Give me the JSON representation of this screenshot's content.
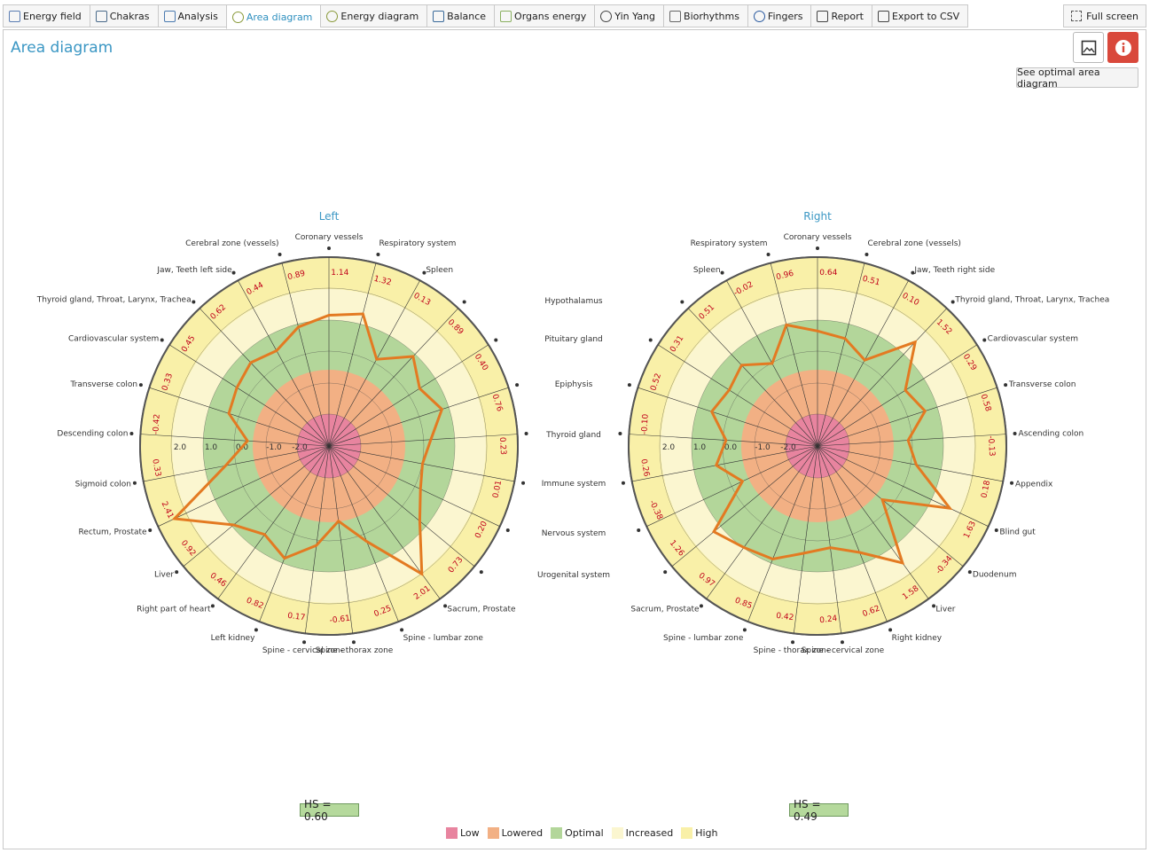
{
  "tabs": [
    {
      "label": "Energy field",
      "icon": "energy-field-icon",
      "active": false
    },
    {
      "label": "Chakras",
      "icon": "chakras-icon",
      "active": false
    },
    {
      "label": "Analysis",
      "icon": "analysis-icon",
      "active": false
    },
    {
      "label": "Area diagram",
      "icon": "area-diagram-icon",
      "active": true
    },
    {
      "label": "Energy diagram",
      "icon": "energy-diagram-icon",
      "active": false
    },
    {
      "label": "Balance",
      "icon": "balance-icon",
      "active": false
    },
    {
      "label": "Organs energy",
      "icon": "organs-energy-icon",
      "active": false
    },
    {
      "label": "Yin Yang",
      "icon": "yin-yang-icon",
      "active": false
    },
    {
      "label": "Biorhythms",
      "icon": "biorhythms-icon",
      "active": false
    },
    {
      "label": "Fingers",
      "icon": "fingers-icon",
      "active": false
    },
    {
      "label": "Report",
      "icon": "printer-icon",
      "active": false
    },
    {
      "label": "Export to CSV",
      "icon": "export-icon",
      "active": false
    }
  ],
  "fullscreen_label": "Full screen",
  "page_title": "Area diagram",
  "optimal_button_label": "See optimal area diagram",
  "middle_labels": [
    "Hypothalamus",
    "Pituitary gland",
    "Epiphysis",
    "Thyroid gland",
    "Immune system",
    "Nervous system",
    "Urogenital system"
  ],
  "legend": [
    {
      "label": "Low",
      "color": "#e8849f"
    },
    {
      "label": "Lowered",
      "color": "#f2b084"
    },
    {
      "label": "Optimal",
      "color": "#b3d69a"
    },
    {
      "label": "Increased",
      "color": "#fbf6d0"
    },
    {
      "label": "High",
      "color": "#f9f0a8"
    }
  ],
  "line_color": "#e37a22",
  "value_color": "#c0001a",
  "chart_data": [
    {
      "type": "radar",
      "title": "Left",
      "hs_label": "HS = 0.60",
      "ring_scale": [
        "2.0",
        "1.0",
        "0.0",
        "-1.0",
        "-2.0"
      ],
      "axes": [
        "Coronary vessels",
        "Respiratory system",
        "Spleen",
        "",
        "",
        "",
        "",
        "",
        "",
        "",
        "Sacrum, Prostate",
        "Spine - lumbar zone",
        "Spine - thorax zone",
        "Spine - cervical zone",
        "Left kidney",
        "Right part of heart",
        "Liver",
        "Rectum, Prostate",
        "Sigmoid colon",
        "Descending colon",
        "Transverse colon",
        "Cardiovascular system",
        "Thyroid gland, Throat, Larynx, Trachea",
        "Jaw, Teeth left side",
        "Cerebral zone (vessels)"
      ],
      "values": [
        1.14,
        1.32,
        0.13,
        0.89,
        0.4,
        0.76,
        0.23,
        0.01,
        0.2,
        0.73,
        2.01,
        0.25,
        -0.61,
        0.17,
        0.82,
        0.46,
        0.92,
        2.41,
        0.33,
        -0.42,
        0.33,
        0.45,
        0.62,
        0.44,
        0.89
      ],
      "value_labels": [
        "1.14",
        "1.32",
        "0.13",
        "0.89",
        "0.40",
        "0.76",
        "0.23",
        "0.01",
        "0.20",
        "0.73",
        "2.01",
        "0.25",
        "-0.61",
        "0.17",
        "0.82",
        "0.46",
        "0.92",
        "2.41",
        "0.33",
        "-0.42",
        "0.33",
        "0.45",
        "0.62",
        "0.44",
        "0.89"
      ],
      "rlim": [
        -3,
        3
      ]
    },
    {
      "type": "radar",
      "title": "Right",
      "hs_label": "HS = 0.49",
      "ring_scale": [
        "2.0",
        "1.0",
        "0.0",
        "-1.0",
        "-2.0"
      ],
      "axes": [
        "Coronary vessels",
        "Cerebral zone (vessels)",
        "Jaw, Teeth right side",
        "Thyroid gland, Throat, Larynx, Trachea",
        "Cardiovascular system",
        "Transverse colon",
        "Ascending colon",
        "Appendix",
        "Blind gut",
        "Duodenum",
        "Liver",
        "Right kidney",
        "Spine - cervical zone",
        "Spine - thorax zone",
        "Spine - lumbar zone",
        "Sacrum, Prostate",
        "",
        "",
        "",
        "",
        "",
        "",
        "",
        "Spleen",
        "Respiratory system"
      ],
      "values": [
        0.64,
        0.51,
        0.1,
        1.52,
        0.29,
        0.58,
        -0.13,
        0.18,
        1.63,
        -0.34,
        1.58,
        0.62,
        0.24,
        0.42,
        0.85,
        0.97,
        1.26,
        -0.38,
        0.26,
        -0.1,
        0.52,
        0.31,
        0.51,
        -0.02,
        0.96
      ],
      "value_labels": [
        "0.64",
        "0.51",
        "0.10",
        "1.52",
        "0.29",
        "0.58",
        "-0.13",
        "0.18",
        "1.63",
        "-0.34",
        "1.58",
        "0.62",
        "0.24",
        "0.42",
        "0.85",
        "0.97",
        "1.26",
        "-0.38",
        "0.26",
        "-0.10",
        "0.52",
        "0.31",
        "0.51",
        "-0.02",
        "0.96"
      ],
      "rlim": [
        -3,
        3
      ]
    }
  ]
}
